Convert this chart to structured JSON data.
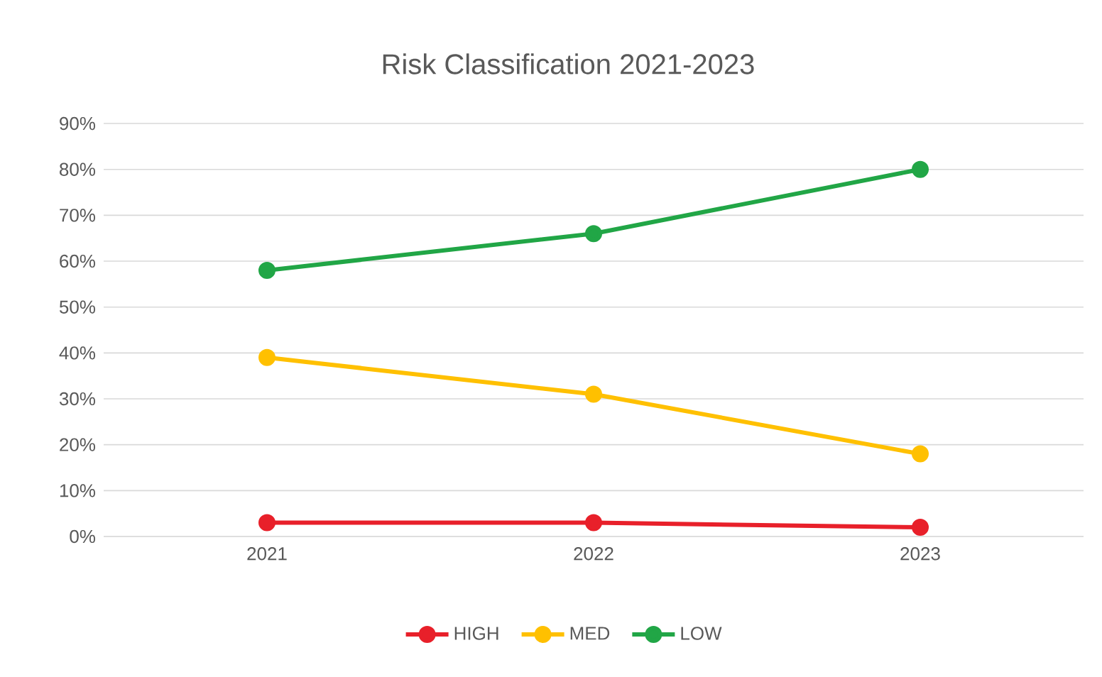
{
  "chart_data": {
    "type": "line",
    "title": "Risk Classification 2021-2023",
    "categories": [
      "2021",
      "2022",
      "2023"
    ],
    "series": [
      {
        "name": "HIGH",
        "color": "#e8202a",
        "values": [
          3,
          3,
          2
        ]
      },
      {
        "name": "MED",
        "color": "#ffc000",
        "values": [
          39,
          31,
          18
        ]
      },
      {
        "name": "LOW",
        "color": "#21a646",
        "values": [
          58,
          66,
          80
        ]
      }
    ],
    "ylim": [
      0,
      90
    ],
    "yticks": [
      {
        "value": 0,
        "label": "0%"
      },
      {
        "value": 10,
        "label": "10%"
      },
      {
        "value": 20,
        "label": "20%"
      },
      {
        "value": 30,
        "label": "30%"
      },
      {
        "value": 40,
        "label": "40%"
      },
      {
        "value": 50,
        "label": "50%"
      },
      {
        "value": 60,
        "label": "60%"
      },
      {
        "value": 70,
        "label": "70%"
      },
      {
        "value": 80,
        "label": "80%"
      },
      {
        "value": 90,
        "label": "90%"
      }
    ],
    "grid": "y",
    "legend": "bottom",
    "marker": "circle",
    "line_style": "solid"
  }
}
